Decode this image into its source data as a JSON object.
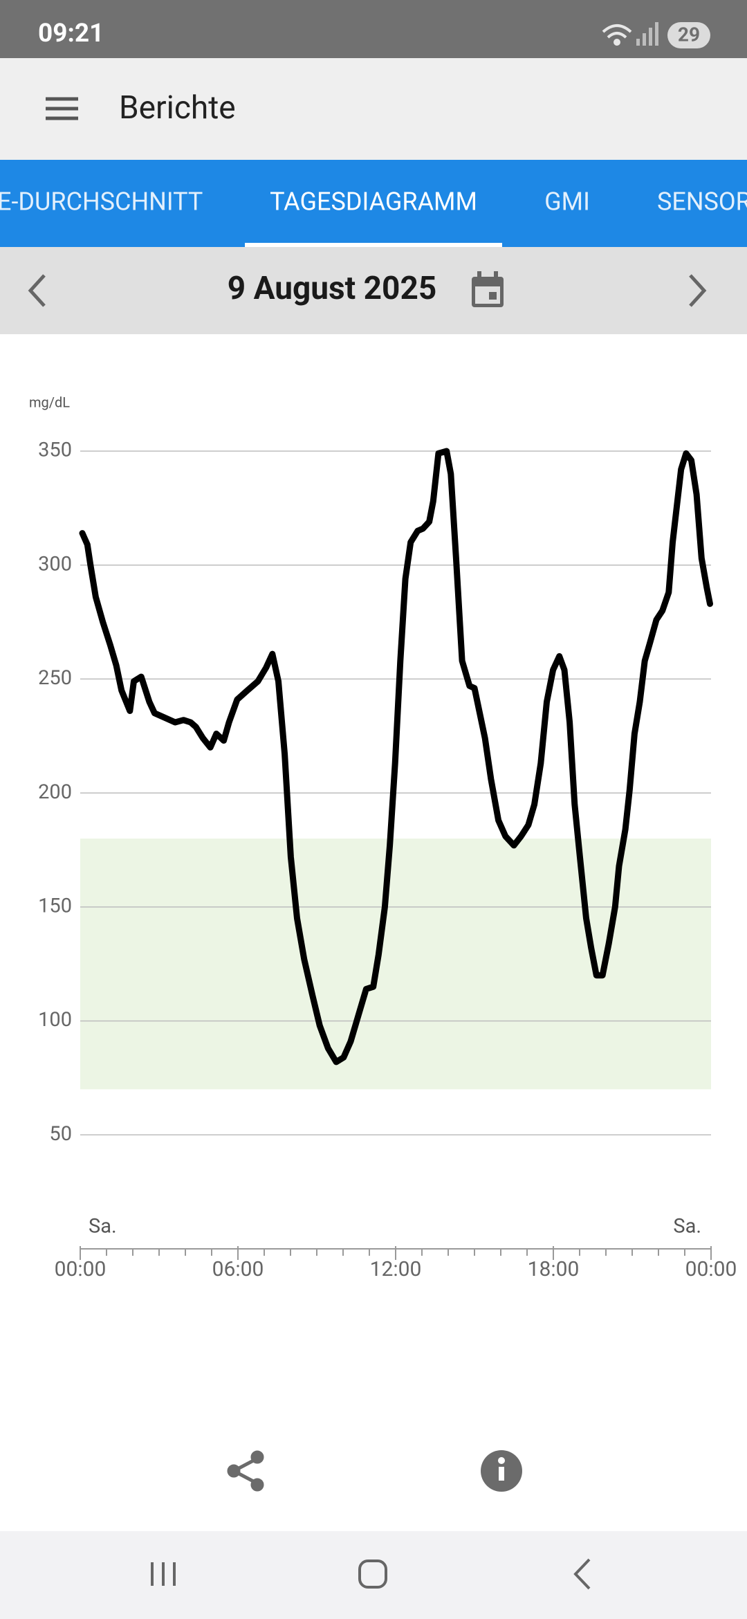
{
  "status_bar": {
    "time": "09:21",
    "battery": "29"
  },
  "app_bar": {
    "title": "Berichte"
  },
  "tabs": [
    "E-DURCHSCHNITT",
    "TAGESDIAGRAMM",
    "GMI",
    "SENSOR"
  ],
  "date": "9 August 2025",
  "chart_data": {
    "type": "line",
    "y_unit": "mg/dL",
    "day_labels": [
      "Sa.",
      "Sa."
    ],
    "x": [
      0.08,
      0.27,
      0.39,
      0.59,
      0.86,
      1.14,
      1.37,
      1.57,
      1.89,
      2.04,
      2.32,
      2.63,
      2.83,
      3.22,
      3.61,
      3.93,
      4.2,
      4.4,
      4.67,
      4.95,
      5.18,
      5.46,
      5.66,
      5.97,
      6.36,
      6.76,
      7.07,
      7.31,
      7.54,
      7.78,
      8.01,
      8.25,
      8.52,
      8.84,
      9.11,
      9.43,
      9.74,
      10.02,
      10.29,
      10.57,
      10.88,
      11.15,
      11.35,
      11.59,
      11.78,
      11.98,
      12.18,
      12.37,
      12.57,
      12.84,
      13.04,
      13.28,
      13.43,
      13.63,
      13.94,
      14.1,
      14.3,
      14.53,
      14.81,
      15.0,
      15.2,
      15.4,
      15.63,
      15.91,
      16.18,
      16.5,
      16.77,
      17.05,
      17.28,
      17.52,
      17.75,
      17.99,
      18.23,
      18.42,
      18.62,
      18.81,
      19.01,
      19.25,
      19.44,
      19.64,
      19.87,
      20.11,
      20.35,
      20.5,
      20.74,
      20.9,
      21.09,
      21.29,
      21.48,
      21.68,
      21.92,
      22.15,
      22.39,
      22.54,
      22.7,
      22.86,
      23.05,
      23.25,
      23.45,
      23.64,
      23.84,
      23.96
    ],
    "values": [
      314,
      309,
      300,
      286,
      275,
      265,
      256,
      245,
      236,
      249,
      251,
      240,
      235,
      233,
      231,
      232,
      231,
      229,
      224,
      220,
      226,
      223,
      231,
      241,
      245,
      249,
      255,
      261,
      249,
      217,
      172,
      145,
      127,
      111,
      98,
      88,
      82,
      84,
      91,
      102,
      114,
      115,
      129,
      150,
      177,
      213,
      258,
      294,
      310,
      315,
      316,
      319,
      328,
      349,
      350,
      340,
      303,
      258,
      247,
      246,
      235,
      224,
      206,
      188,
      181,
      177,
      181,
      186,
      195,
      213,
      240,
      254,
      260,
      254,
      231,
      195,
      172,
      145,
      132,
      120,
      120,
      134,
      150,
      168,
      184,
      201,
      226,
      240,
      258,
      266,
      276,
      280,
      288,
      310,
      326,
      342,
      349,
      346,
      331,
      303,
      290,
      283
    ],
    "color": "#000000",
    "target_range": [
      70,
      180
    ],
    "target_color": "#ecf5e4",
    "xlim": [
      0,
      24
    ],
    "xticks": [
      {
        "value": 0,
        "label": "00:00"
      },
      {
        "value": 6,
        "label": "06:00"
      },
      {
        "value": 12,
        "label": "12:00"
      },
      {
        "value": 18,
        "label": "18:00"
      },
      {
        "value": 24,
        "label": "00:00"
      }
    ],
    "xminorticks": [
      1,
      2,
      3,
      4,
      5,
      7,
      8,
      9,
      10,
      11,
      13,
      14,
      15,
      16,
      17,
      19,
      20,
      21,
      22,
      23
    ],
    "ylim": [
      0,
      350
    ],
    "yticks": [
      50,
      100,
      150,
      200,
      250,
      300,
      350
    ],
    "grid": true
  }
}
